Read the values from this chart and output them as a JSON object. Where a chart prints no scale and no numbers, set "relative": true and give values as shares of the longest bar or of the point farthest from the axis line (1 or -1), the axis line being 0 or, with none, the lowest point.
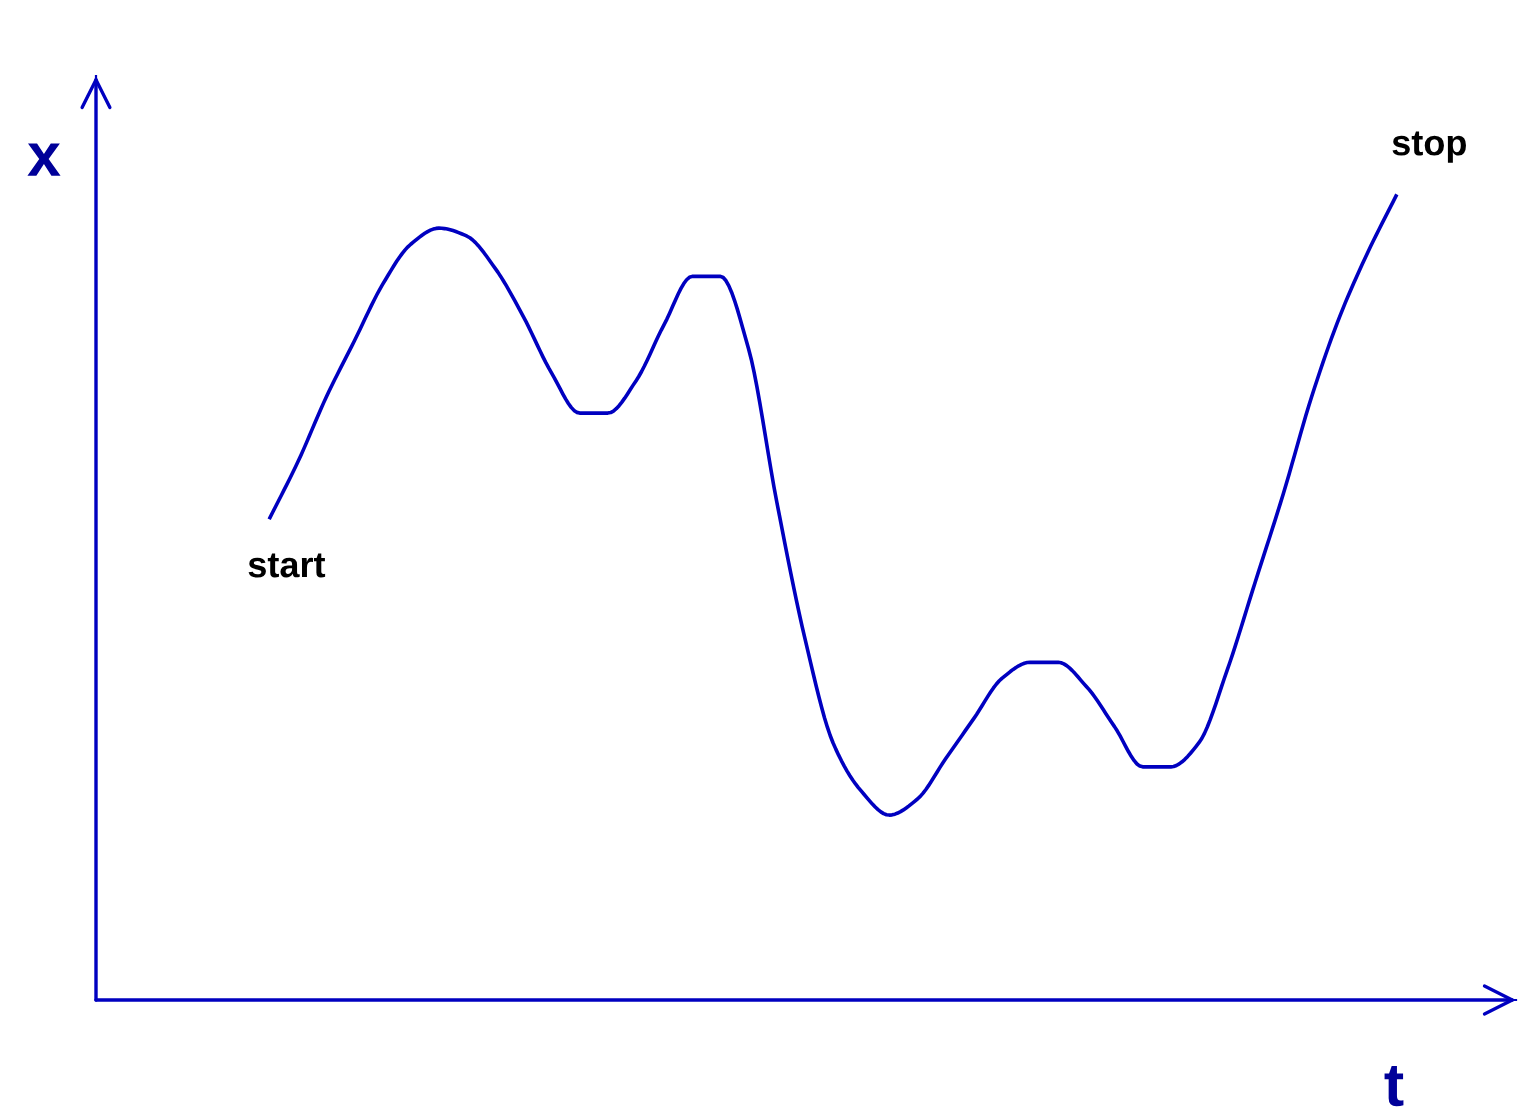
{
  "chart_data": {
    "type": "line",
    "relative": true,
    "xlabel": "t",
    "ylabel": "x",
    "categories": [
      null,
      null,
      null,
      null,
      null,
      null,
      null,
      null,
      null,
      null,
      null,
      null,
      null,
      null,
      null,
      null,
      null,
      null,
      null,
      null,
      null,
      null,
      null,
      null,
      null,
      null,
      null,
      null,
      null,
      null,
      null,
      null,
      null,
      null,
      null,
      null,
      null,
      null,
      null,
      null,
      null
    ],
    "series": [
      {
        "color": "#0000c0",
        "values": [
          0.6,
          0.67,
          0.75,
          0.82,
          0.89,
          0.94,
          0.96,
          0.95,
          0.91,
          0.85,
          0.78,
          0.73,
          0.73,
          0.77,
          0.84,
          0.9,
          0.9,
          0.81,
          0.62,
          0.45,
          0.32,
          0.26,
          0.23,
          0.25,
          0.3,
          0.35,
          0.4,
          0.42,
          0.42,
          0.39,
          0.34,
          0.29,
          0.29,
          0.32,
          0.41,
          0.52,
          0.63,
          0.75,
          0.85,
          0.93,
          1.0
        ]
      }
    ],
    "annotations": [
      "start",
      "stop"
    ]
  }
}
